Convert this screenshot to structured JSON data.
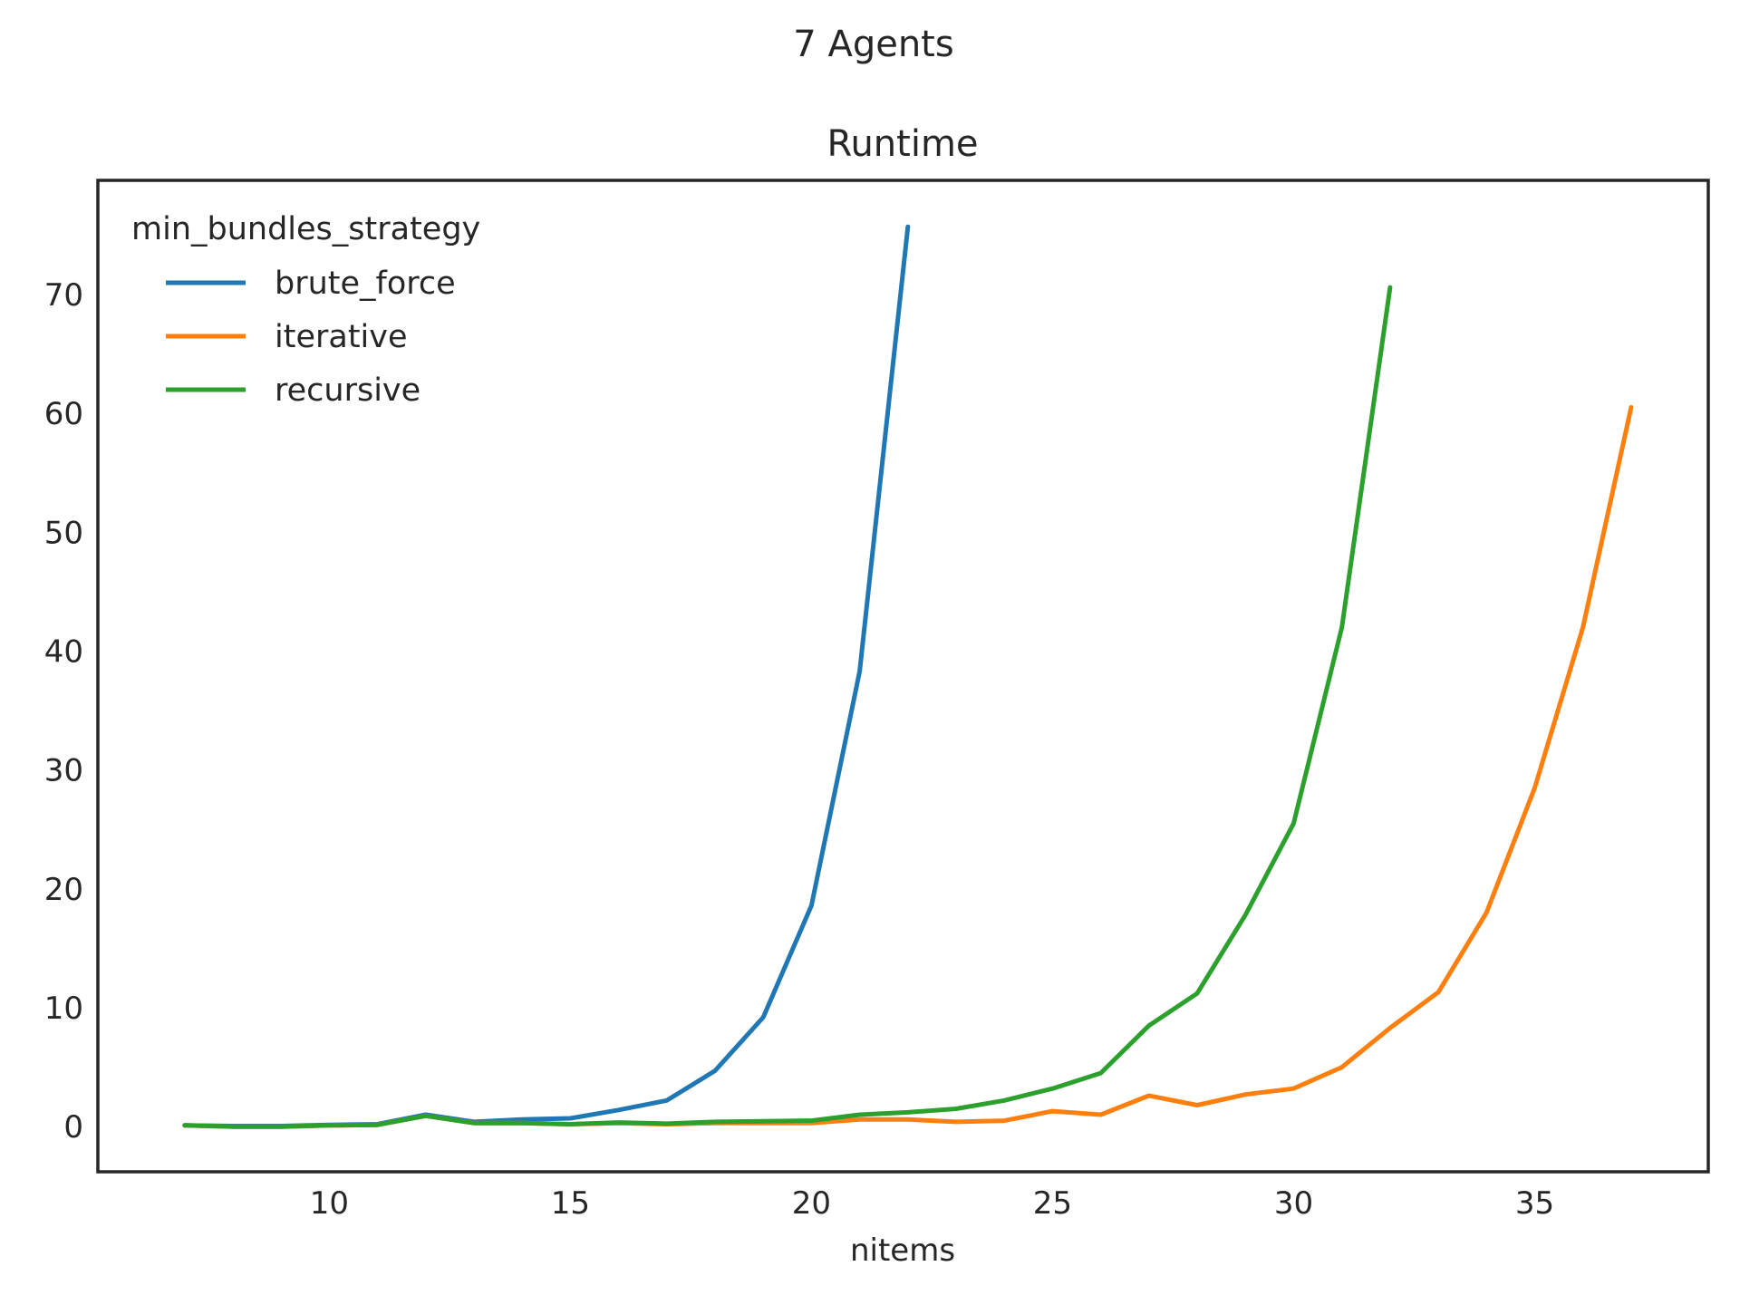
{
  "chart_data": {
    "type": "line",
    "suptitle": "7 Agents",
    "title": "Runtime",
    "xlabel": "nitems",
    "ylabel": "",
    "xlim": [
      5.2,
      38.6
    ],
    "ylim": [
      -3.8,
      79.6
    ],
    "xticks": [
      10,
      15,
      20,
      25,
      30,
      35
    ],
    "yticks": [
      0,
      10,
      20,
      30,
      40,
      50,
      60,
      70
    ],
    "grid": false,
    "legend": {
      "title": "min_bundles_strategy",
      "placement": "top-left"
    },
    "series": [
      {
        "name": "brute_force",
        "color": "#1f77b4",
        "x": [
          7,
          8,
          9,
          10,
          11,
          12,
          13,
          14,
          15,
          16,
          17,
          18,
          19,
          20,
          21,
          22
        ],
        "y": [
          0.1,
          0.05,
          0.05,
          0.15,
          0.2,
          1.0,
          0.4,
          0.6,
          0.7,
          1.4,
          2.2,
          4.7,
          9.2,
          18.6,
          38.3,
          75.7
        ]
      },
      {
        "name": "iterative",
        "color": "#ff7f0e",
        "x": [
          7,
          8,
          9,
          10,
          11,
          12,
          13,
          14,
          15,
          16,
          17,
          18,
          19,
          20,
          21,
          22,
          23,
          24,
          25,
          26,
          27,
          28,
          29,
          30,
          31,
          32,
          33,
          34,
          35,
          36,
          37
        ],
        "y": [
          0.1,
          0.0,
          0.0,
          0.1,
          0.15,
          0.9,
          0.3,
          0.3,
          0.2,
          0.3,
          0.2,
          0.3,
          0.3,
          0.3,
          0.6,
          0.6,
          0.4,
          0.5,
          1.3,
          1.0,
          2.6,
          1.8,
          2.7,
          3.2,
          5.0,
          8.3,
          11.3,
          18.0,
          28.5,
          42.0,
          60.5
        ]
      },
      {
        "name": "recursive",
        "color": "#2ca02c",
        "x": [
          7,
          8,
          9,
          10,
          11,
          12,
          13,
          14,
          15,
          16,
          17,
          18,
          19,
          20,
          21,
          22,
          23,
          24,
          25,
          26,
          27,
          28,
          29,
          30,
          31,
          32
        ],
        "y": [
          0.1,
          0.0,
          0.0,
          0.1,
          0.15,
          0.9,
          0.3,
          0.3,
          0.2,
          0.35,
          0.25,
          0.4,
          0.45,
          0.5,
          1.0,
          1.2,
          1.5,
          2.2,
          3.2,
          4.5,
          8.5,
          11.2,
          17.8,
          25.5,
          42.0,
          70.6
        ]
      }
    ]
  }
}
